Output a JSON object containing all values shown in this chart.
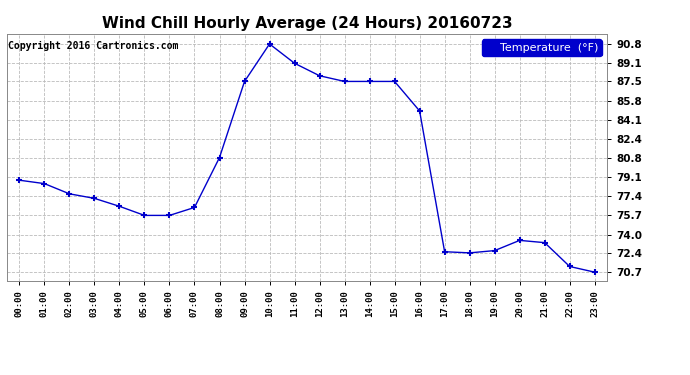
{
  "title": "Wind Chill Hourly Average (24 Hours) 20160723",
  "copyright": "Copyright 2016 Cartronics.com",
  "legend_label": "Temperature  (°F)",
  "x_labels": [
    "00:00",
    "01:00",
    "02:00",
    "03:00",
    "04:00",
    "05:00",
    "06:00",
    "07:00",
    "08:00",
    "09:00",
    "10:00",
    "11:00",
    "12:00",
    "13:00",
    "14:00",
    "15:00",
    "16:00",
    "17:00",
    "18:00",
    "19:00",
    "20:00",
    "21:00",
    "22:00",
    "23:00"
  ],
  "y_values": [
    78.8,
    78.5,
    77.6,
    77.2,
    76.5,
    75.7,
    75.7,
    76.4,
    80.8,
    87.5,
    90.8,
    89.1,
    88.0,
    87.5,
    87.5,
    87.5,
    84.9,
    72.5,
    72.4,
    72.6,
    73.5,
    73.3,
    71.2,
    70.7
  ],
  "ylim_min": 69.9,
  "ylim_max": 91.7,
  "yticks": [
    70.7,
    72.4,
    74.0,
    75.7,
    77.4,
    79.1,
    80.8,
    82.4,
    84.1,
    85.8,
    87.5,
    89.1,
    90.8
  ],
  "line_color": "#0000cc",
  "marker": "+",
  "marker_size": 5,
  "marker_color": "#0000cc",
  "grid_color": "#bbbbbb",
  "bg_color": "#ffffff",
  "plot_bg_color": "#ffffff",
  "title_fontsize": 11,
  "copyright_fontsize": 7,
  "legend_bg_color": "#0000cc",
  "legend_text_color": "#ffffff",
  "legend_fontsize": 8
}
